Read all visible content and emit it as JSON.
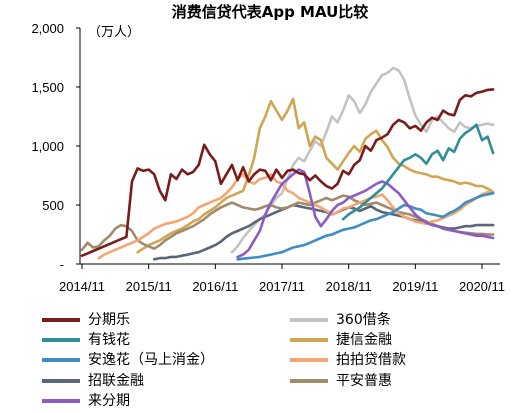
{
  "chart_data": {
    "type": "line",
    "title": "消费信贷代表App MAU比较",
    "unit_label": "（万人）",
    "ylim": [
      0,
      2000
    ],
    "y_ticks": [
      0,
      500,
      1000,
      1500,
      2000
    ],
    "y_tick_labels": [
      "-",
      "500",
      "1,000",
      "1,500",
      "2,000"
    ],
    "x_ticks": [
      "2014/11",
      "2015/11",
      "2016/11",
      "2017/11",
      "2018/11",
      "2019/11",
      "2020/11"
    ],
    "grid": false,
    "legend_placement": "bottom",
    "x": [
      "2014/11",
      "2014/12",
      "2015/01",
      "2015/02",
      "2015/03",
      "2015/04",
      "2015/05",
      "2015/06",
      "2015/07",
      "2015/08",
      "2015/09",
      "2015/10",
      "2015/11",
      "2015/12",
      "2016/01",
      "2016/02",
      "2016/03",
      "2016/04",
      "2016/05",
      "2016/06",
      "2016/07",
      "2016/08",
      "2016/09",
      "2016/10",
      "2016/11",
      "2016/12",
      "2017/01",
      "2017/02",
      "2017/03",
      "2017/04",
      "2017/05",
      "2017/06",
      "2017/07",
      "2017/08",
      "2017/09",
      "2017/10",
      "2017/11",
      "2017/12",
      "2018/01",
      "2018/02",
      "2018/03",
      "2018/04",
      "2018/05",
      "2018/06",
      "2018/07",
      "2018/08",
      "2018/09",
      "2018/10",
      "2018/11",
      "2018/12",
      "2019/01",
      "2019/02",
      "2019/03",
      "2019/04",
      "2019/05",
      "2019/06",
      "2019/07",
      "2019/08",
      "2019/09",
      "2019/10",
      "2019/11",
      "2019/12",
      "2020/01",
      "2020/02",
      "2020/03",
      "2020/04",
      "2020/05",
      "2020/06",
      "2020/07",
      "2020/08",
      "2020/09",
      "2020/10",
      "2020/11",
      "2020/12",
      "2021/01"
    ],
    "series": [
      {
        "name": "分期乐",
        "color": "#7b1c1c",
        "values": [
          70,
          90,
          110,
          130,
          150,
          170,
          190,
          210,
          230,
          700,
          810,
          790,
          800,
          760,
          620,
          540,
          760,
          720,
          800,
          760,
          780,
          840,
          1010,
          930,
          870,
          680,
          760,
          840,
          710,
          820,
          700,
          760,
          800,
          790,
          710,
          800,
          730,
          790,
          800,
          770,
          760,
          710,
          750,
          700,
          660,
          640,
          680,
          790,
          760,
          840,
          880,
          1000,
          960,
          1050,
          1070,
          1100,
          1180,
          1220,
          1200,
          1150,
          1170,
          1130,
          1200,
          1240,
          1220,
          1300,
          1270,
          1260,
          1390,
          1430,
          1420,
          1450,
          1460,
          1475,
          1480
        ]
      },
      {
        "name": "360借条",
        "color": "#c3c3c3",
        "values": [
          null,
          null,
          null,
          null,
          null,
          null,
          null,
          null,
          null,
          null,
          null,
          null,
          null,
          null,
          null,
          null,
          null,
          null,
          null,
          null,
          null,
          null,
          null,
          null,
          null,
          null,
          null,
          100,
          150,
          220,
          280,
          330,
          380,
          420,
          500,
          560,
          600,
          720,
          840,
          900,
          870,
          960,
          1040,
          1000,
          1120,
          1250,
          1200,
          1300,
          1430,
          1380,
          1280,
          1350,
          1460,
          1530,
          1600,
          1620,
          1660,
          1640,
          1560,
          1400,
          1260,
          1180,
          1120,
          1220,
          1250,
          1200,
          1150,
          1120,
          1200,
          1160,
          1150,
          1170,
          1180,
          1190,
          1180
        ]
      },
      {
        "name": "有钱花",
        "color": "#2f8e97",
        "values": [
          null,
          null,
          null,
          null,
          null,
          null,
          null,
          null,
          null,
          null,
          null,
          null,
          null,
          null,
          null,
          null,
          null,
          null,
          null,
          null,
          null,
          null,
          null,
          null,
          null,
          null,
          null,
          null,
          null,
          null,
          null,
          null,
          null,
          null,
          null,
          null,
          null,
          null,
          null,
          null,
          null,
          null,
          null,
          null,
          null,
          null,
          null,
          380,
          420,
          450,
          480,
          520,
          560,
          600,
          640,
          700,
          760,
          820,
          880,
          900,
          930,
          900,
          850,
          930,
          960,
          880,
          980,
          950,
          1060,
          1110,
          1140,
          1180,
          1050,
          1080,
          940
        ]
      },
      {
        "name": "捷信金融",
        "color": "#d1a552",
        "values": [
          null,
          null,
          null,
          null,
          null,
          null,
          null,
          null,
          null,
          null,
          100,
          130,
          160,
          180,
          200,
          230,
          260,
          280,
          300,
          330,
          360,
          380,
          420,
          450,
          480,
          520,
          560,
          580,
          600,
          620,
          750,
          900,
          1150,
          1250,
          1380,
          1300,
          1220,
          1300,
          1400,
          1150,
          1200,
          1000,
          1080,
          1050,
          900,
          850,
          800,
          870,
          940,
          1000,
          950,
          1060,
          1100,
          1130,
          1050,
          990,
          900,
          850,
          830,
          800,
          780,
          770,
          760,
          740,
          740,
          720,
          710,
          700,
          680,
          690,
          680,
          660,
          660,
          640,
          610
        ]
      },
      {
        "name": "安逸花（马上消金）",
        "color": "#3e8ec5",
        "values": [
          null,
          null,
          null,
          null,
          null,
          null,
          null,
          null,
          null,
          null,
          null,
          null,
          null,
          null,
          null,
          null,
          null,
          null,
          null,
          null,
          null,
          null,
          null,
          null,
          null,
          null,
          null,
          null,
          40,
          45,
          50,
          55,
          60,
          70,
          80,
          90,
          100,
          120,
          140,
          150,
          160,
          180,
          200,
          220,
          240,
          250,
          270,
          290,
          300,
          310,
          330,
          350,
          370,
          380,
          400,
          420,
          440,
          470,
          500,
          490,
          470,
          460,
          430,
          420,
          410,
          400,
          430,
          450,
          480,
          520,
          540,
          560,
          580,
          590,
          600
        ]
      },
      {
        "name": "拍拍贷借款",
        "color": "#f3a673",
        "values": [
          null,
          null,
          null,
          50,
          80,
          100,
          120,
          140,
          160,
          180,
          200,
          230,
          260,
          300,
          320,
          340,
          350,
          360,
          380,
          400,
          430,
          480,
          500,
          520,
          540,
          560,
          600,
          650,
          720,
          760,
          700,
          680,
          720,
          730,
          760,
          700,
          680,
          620,
          600,
          560,
          540,
          520,
          500,
          480,
          450,
          420,
          440,
          470,
          480,
          500,
          520,
          540,
          560,
          570,
          590,
          540,
          480,
          430,
          400,
          380,
          360,
          350,
          340,
          360,
          370,
          390,
          410,
          430,
          460,
          500,
          530,
          560,
          590,
          610,
          600
        ]
      },
      {
        "name": "招联金融",
        "color": "#5b6578",
        "values": [
          null,
          null,
          null,
          null,
          null,
          null,
          null,
          null,
          null,
          null,
          null,
          null,
          null,
          40,
          50,
          50,
          60,
          60,
          70,
          80,
          90,
          100,
          120,
          140,
          160,
          190,
          230,
          260,
          280,
          300,
          320,
          350,
          380,
          400,
          420,
          440,
          460,
          480,
          500,
          490,
          480,
          470,
          460,
          450,
          440,
          420,
          440,
          460,
          480,
          470,
          450,
          470,
          490,
          460,
          440,
          430,
          420,
          410,
          400,
          380,
          370,
          360,
          350,
          340,
          320,
          310,
          300,
          300,
          310,
          320,
          320,
          330,
          330,
          330,
          330
        ]
      },
      {
        "name": "平安普惠",
        "color": "#a08b6b",
        "values": [
          120,
          180,
          140,
          150,
          200,
          240,
          300,
          330,
          320,
          280,
          200,
          170,
          150,
          130,
          160,
          200,
          230,
          260,
          280,
          300,
          320,
          350,
          380,
          420,
          450,
          480,
          500,
          520,
          500,
          480,
          470,
          460,
          470,
          490,
          500,
          480,
          470,
          480,
          500,
          520,
          510,
          500,
          520,
          540,
          560,
          540,
          560,
          580,
          570,
          540,
          520,
          500,
          510,
          520,
          500,
          480,
          460,
          440,
          430,
          420,
          400,
          380,
          360,
          340,
          320,
          300,
          290,
          280,
          270,
          265,
          260,
          255,
          255,
          250,
          250
        ]
      },
      {
        "name": "来分期",
        "color": "#8c5bc4",
        "values": [
          null,
          null,
          null,
          null,
          null,
          null,
          null,
          null,
          null,
          null,
          null,
          null,
          null,
          null,
          null,
          null,
          null,
          null,
          null,
          null,
          null,
          null,
          null,
          null,
          null,
          null,
          null,
          null,
          60,
          80,
          120,
          200,
          280,
          420,
          520,
          600,
          680,
          720,
          760,
          800,
          780,
          600,
          400,
          320,
          380,
          450,
          500,
          520,
          560,
          580,
          600,
          620,
          650,
          680,
          700,
          680,
          640,
          600,
          540,
          480,
          420,
          380,
          350,
          330,
          320,
          300,
          290,
          280,
          270,
          260,
          250,
          240,
          240,
          230,
          220
        ]
      }
    ]
  }
}
